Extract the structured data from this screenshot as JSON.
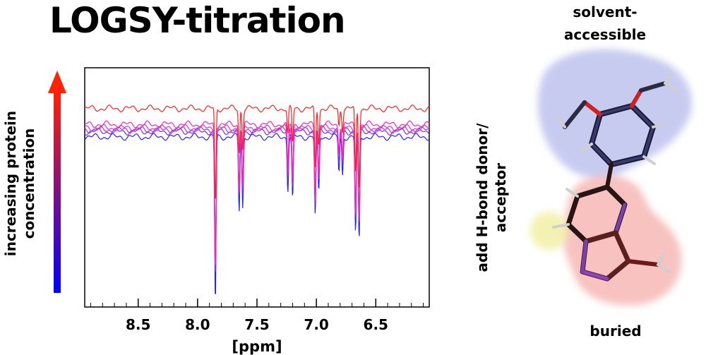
{
  "title": "LOGSY-titration",
  "side_label": {
    "line1": "increasing protein",
    "line2": "concentration",
    "arrow_colors": [
      "#0000ff",
      "#ff2200"
    ]
  },
  "molecule": {
    "top_label_line1": "solvent-",
    "top_label_line2": "accessible",
    "side_label_line1": "add H-bond donor/",
    "side_label_line2": "acceptor",
    "bottom_label": "buried",
    "colors": {
      "accessible_surface": "#aab0e8",
      "buried_surface": "#f4a9a6",
      "hbond_site": "#f2efa0"
    }
  },
  "chart_data": {
    "type": "line",
    "title": "",
    "xlabel": "[ppm]",
    "ylabel": "",
    "x_reversed": true,
    "xlim": [
      8.95,
      6.05
    ],
    "ylim": [
      -1.0,
      0.35
    ],
    "xticks": [
      8.5,
      8.0,
      7.5,
      7.0,
      6.5
    ],
    "xtick_labels": [
      "8.5",
      "8.0",
      "7.5",
      "7.0",
      "6.5"
    ],
    "grid": false,
    "peaks": [
      {
        "x": 7.85,
        "depths": [
          0.95,
          0.85,
          0.82,
          0.8,
          0.78,
          0.55
        ]
      },
      {
        "x": 7.65,
        "depths": [
          0.42,
          0.38,
          0.37,
          0.36,
          0.35,
          0.25
        ]
      },
      {
        "x": 7.62,
        "depths": [
          0.4,
          0.36,
          0.35,
          0.34,
          0.33,
          0.22
        ]
      },
      {
        "x": 7.24,
        "depths": [
          0.3,
          0.27,
          0.26,
          0.25,
          0.24,
          0.15
        ]
      },
      {
        "x": 7.2,
        "depths": [
          0.36,
          0.32,
          0.31,
          0.3,
          0.29,
          0.2
        ]
      },
      {
        "x": 7.01,
        "depths": [
          0.45,
          0.42,
          0.41,
          0.4,
          0.39,
          0.35
        ]
      },
      {
        "x": 6.98,
        "depths": [
          0.32,
          0.3,
          0.29,
          0.28,
          0.27,
          0.2
        ]
      },
      {
        "x": 6.81,
        "depths": [
          0.2,
          0.18,
          0.17,
          0.16,
          0.15,
          0.1
        ]
      },
      {
        "x": 6.78,
        "depths": [
          0.22,
          0.2,
          0.19,
          0.18,
          0.17,
          0.12
        ]
      },
      {
        "x": 6.67,
        "depths": [
          0.55,
          0.5,
          0.49,
          0.48,
          0.47,
          0.38
        ]
      },
      {
        "x": 6.64,
        "depths": [
          0.6,
          0.55,
          0.54,
          0.53,
          0.52,
          0.45
        ]
      }
    ],
    "series": [
      {
        "color": "#2222ff",
        "baseline": -0.04
      },
      {
        "color": "#7a2cf0",
        "baseline": -0.01
      },
      {
        "color": "#b030e0",
        "baseline": 0.0
      },
      {
        "color": "#e030d8",
        "baseline": 0.01
      },
      {
        "color": "#ff22b0",
        "baseline": 0.03
      },
      {
        "color": "#ff2020",
        "baseline": 0.12
      }
    ]
  }
}
